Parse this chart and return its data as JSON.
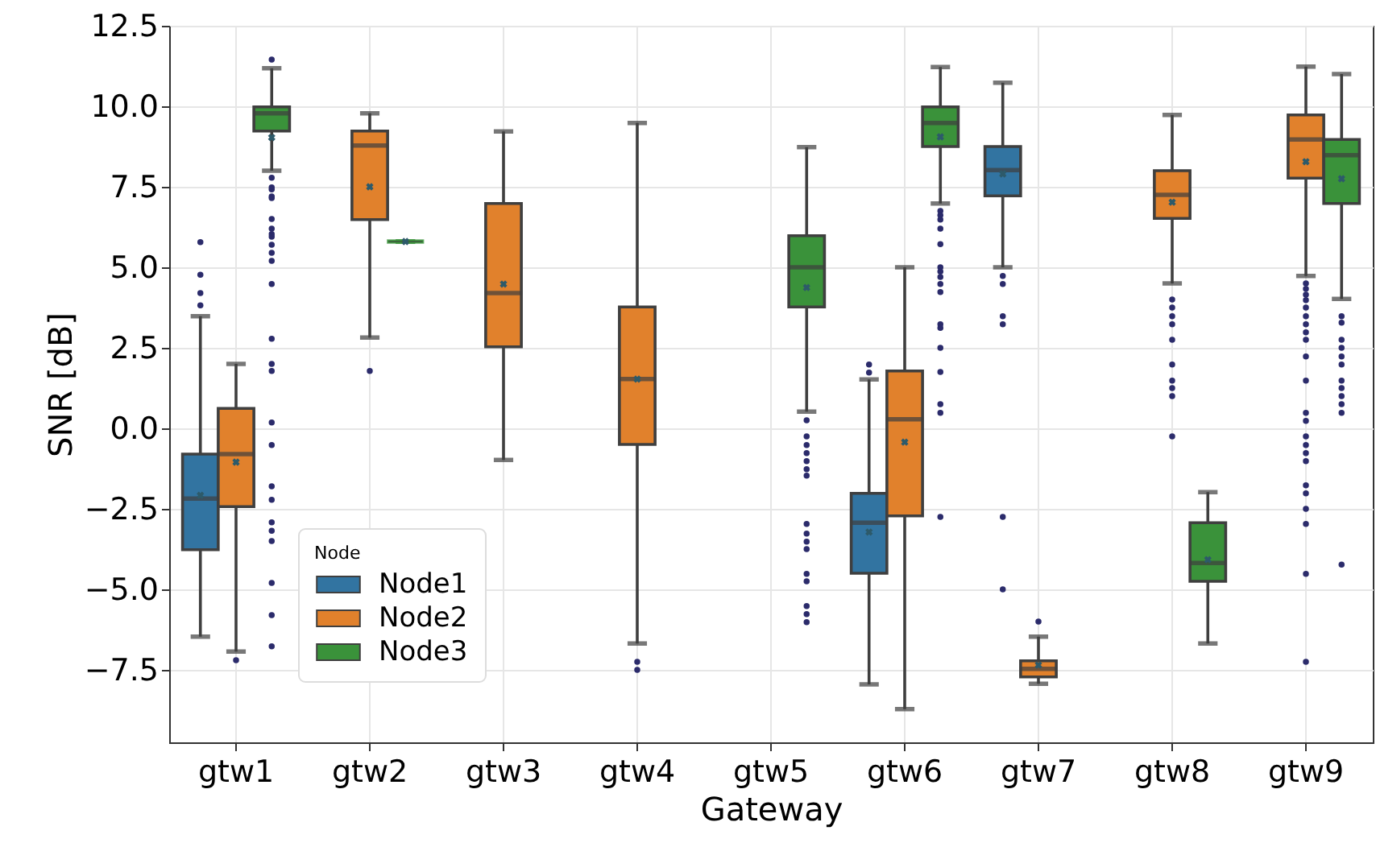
{
  "chart_data": {
    "type": "box",
    "xlabel": "Gateway",
    "ylabel": "SNR [dB]",
    "legend_title": "Node",
    "legend": "bottom left",
    "grid": true,
    "categories": [
      "gtw1",
      "gtw2",
      "gtw3",
      "gtw4",
      "gtw5",
      "gtw6",
      "gtw7",
      "gtw8",
      "gtw9"
    ],
    "ylim": [
      -9.75,
      12.5
    ],
    "yticks": [
      {
        "value": -7.5,
        "label": "−7.5"
      },
      {
        "value": -5,
        "label": "−5.0"
      },
      {
        "value": -2.5,
        "label": "−2.5"
      },
      {
        "value": 0,
        "label": "0.0"
      },
      2.5,
      {
        "value": 5,
        "label": "5.0"
      },
      7.5,
      {
        "value": 10,
        "label": "10.0"
      },
      12.5
    ],
    "series": [
      {
        "name": "Node1",
        "color": "#3274a1",
        "boxes": [
          {
            "low": -6.47,
            "q1": -3.77,
            "median": -2.18,
            "q3": -0.8,
            "high": 3.48,
            "mean": -2.08,
            "outliers": [
              5.78,
              4.77,
              4.2,
              3.82
            ]
          },
          null,
          null,
          null,
          null,
          {
            "low": -7.95,
            "q1": -4.5,
            "median": -2.93,
            "q3": -2.02,
            "high": 1.52,
            "mean": -3.22,
            "outliers": [
              1.98,
              1.73
            ]
          },
          {
            "low": 5.0,
            "q1": 7.22,
            "median": 8.02,
            "q3": 8.75,
            "high": 10.73,
            "mean": 7.9,
            "outliers": [
              4.73,
              4.48,
              3.48,
              3.23,
              -2.75,
              -5.0
            ]
          },
          null,
          null
        ]
      },
      {
        "name": "Node2",
        "color": "#e1812c",
        "boxes": [
          {
            "low": -6.93,
            "q1": -2.43,
            "median": -0.8,
            "q3": 0.62,
            "high": 2.0,
            "mean": -1.05,
            "outliers": [
              -7.2
            ]
          },
          {
            "low": 2.82,
            "q1": 6.48,
            "median": 8.78,
            "q3": 9.23,
            "high": 9.78,
            "mean": 7.5,
            "outliers": [
              1.78
            ]
          },
          {
            "low": -0.98,
            "q1": 2.53,
            "median": 4.2,
            "q3": 6.98,
            "high": 9.22,
            "mean": 4.48
          },
          {
            "low": -6.68,
            "q1": -0.5,
            "median": 1.53,
            "q3": 3.77,
            "high": 9.48,
            "mean": 1.53,
            "outliers": [
              -7.25,
              -7.5
            ]
          },
          null,
          {
            "low": -8.72,
            "q1": -2.72,
            "median": 0.28,
            "q3": 1.78,
            "high": 5.0,
            "mean": -0.43
          },
          {
            "low": -7.93,
            "q1": -7.72,
            "median": -7.47,
            "q3": -7.22,
            "high": -6.47,
            "mean": -7.35,
            "outliers": [
              -6.0
            ]
          },
          {
            "low": 4.5,
            "q1": 6.52,
            "median": 7.25,
            "q3": 8.0,
            "high": 9.73,
            "mean": 7.02,
            "outliers": [
              4.0,
              3.75,
              3.48,
              3.23,
              2.75,
              1.98,
              1.48,
              1.25,
              1.0,
              -0.25
            ]
          },
          {
            "low": 4.73,
            "q1": 7.77,
            "median": 8.97,
            "q3": 9.73,
            "high": 11.23,
            "mean": 8.28,
            "outliers": [
              4.5,
              4.33,
              4.15,
              3.98,
              3.75,
              3.48,
              3.23,
              2.98,
              2.75,
              2.23,
              1.48,
              0.48,
              0.23,
              -0.25,
              -0.52,
              -0.77,
              -1.02,
              -1.77,
              -2.02,
              -2.5,
              -2.97,
              -4.52,
              -7.25
            ]
          }
        ]
      },
      {
        "name": "Node3",
        "color": "#3a923a",
        "boxes": [
          {
            "low": 8.0,
            "q1": 9.23,
            "median": 9.78,
            "q3": 9.98,
            "high": 11.18,
            "mean": 9.03,
            "outliers": [
              11.45,
              7.78,
              7.48,
              7.42,
              7.2,
              7.15,
              6.5,
              6.2,
              6.03,
              5.95,
              5.7,
              5.45,
              5.2,
              4.48,
              2.78,
              2.0,
              1.78,
              0.18,
              -0.52,
              -1.8,
              -2.22,
              -2.92,
              -3.18,
              -3.5,
              -4.8,
              -5.8,
              -6.77
            ]
          },
          {
            "low": 5.8,
            "q1": 5.8,
            "median": 5.8,
            "q3": 5.8,
            "high": 5.8,
            "mean": 5.8
          },
          null,
          null,
          {
            "low": 0.52,
            "q1": 3.77,
            "median": 5.0,
            "q3": 5.98,
            "high": 8.73,
            "mean": 4.37,
            "outliers": [
              0.25,
              -0.25,
              -0.52,
              -0.77,
              -1.02,
              -1.27,
              -1.47,
              -2.97,
              -3.27,
              -3.52,
              -3.75,
              -4.52,
              -4.75,
              -5.52,
              -5.77,
              -6.02
            ]
          },
          {
            "low": 6.98,
            "q1": 8.75,
            "median": 9.48,
            "q3": 9.98,
            "high": 11.22,
            "mean": 9.05,
            "outliers": [
              6.75,
              6.62,
              6.48,
              6.2,
              5.72,
              5.0,
              4.87,
              4.7,
              4.48,
              4.23,
              3.23,
              3.12,
              2.5,
              1.75,
              0.75,
              0.48,
              -2.75
            ]
          },
          null,
          {
            "low": -6.68,
            "q1": -4.75,
            "median": -4.18,
            "q3": -2.93,
            "high": -1.98,
            "mean": -4.08
          },
          {
            "low": 4.02,
            "q1": 6.98,
            "median": 8.48,
            "q3": 8.97,
            "high": 11.0,
            "mean": 7.75,
            "outliers": [
              3.48,
              3.28,
              2.75,
              2.5,
              2.23,
              1.98,
              1.48,
              1.25,
              1.0,
              0.75,
              0.48,
              -4.23
            ]
          }
        ]
      }
    ]
  }
}
